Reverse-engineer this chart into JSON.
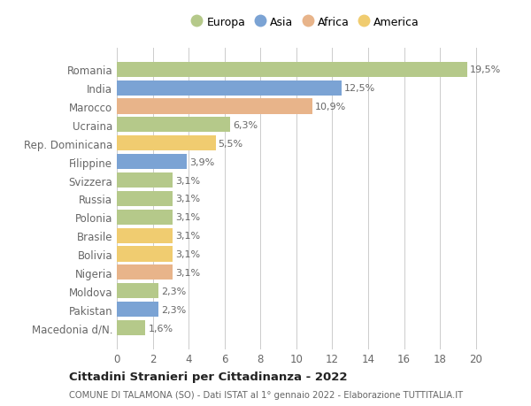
{
  "countries": [
    "Romania",
    "India",
    "Marocco",
    "Ucraina",
    "Rep. Dominicana",
    "Filippine",
    "Svizzera",
    "Russia",
    "Polonia",
    "Brasile",
    "Bolivia",
    "Nigeria",
    "Moldova",
    "Pakistan",
    "Macedonia d/N."
  ],
  "values": [
    19.5,
    12.5,
    10.9,
    6.3,
    5.5,
    3.9,
    3.1,
    3.1,
    3.1,
    3.1,
    3.1,
    3.1,
    2.3,
    2.3,
    1.6
  ],
  "labels": [
    "19,5%",
    "12,5%",
    "10,9%",
    "6,3%",
    "5,5%",
    "3,9%",
    "3,1%",
    "3,1%",
    "3,1%",
    "3,1%",
    "3,1%",
    "3,1%",
    "2,3%",
    "2,3%",
    "1,6%"
  ],
  "continents": [
    "Europa",
    "Asia",
    "Africa",
    "Europa",
    "America",
    "Asia",
    "Europa",
    "Europa",
    "Europa",
    "America",
    "America",
    "Africa",
    "Europa",
    "Asia",
    "Europa"
  ],
  "colors": {
    "Europa": "#b5c98a",
    "Asia": "#7ba3d4",
    "Africa": "#e8b48a",
    "America": "#f0cc70"
  },
  "legend_order": [
    "Europa",
    "Asia",
    "Africa",
    "America"
  ],
  "legend_colors": [
    "#b5c98a",
    "#7ba3d4",
    "#e8b48a",
    "#f0cc70"
  ],
  "xlim": [
    0,
    21
  ],
  "xticks": [
    0,
    2,
    4,
    6,
    8,
    10,
    12,
    14,
    16,
    18,
    20
  ],
  "title_main": "Cittadini Stranieri per Cittadinanza - 2022",
  "title_sub": "COMUNE DI TALAMONA (SO) - Dati ISTAT al 1° gennaio 2022 - Elaborazione TUTTITALIA.IT",
  "bg_color": "#ffffff",
  "grid_color": "#cccccc",
  "bar_height": 0.82,
  "label_fontsize": 8.0,
  "ytick_fontsize": 8.5,
  "xtick_fontsize": 8.5,
  "text_color": "#666666"
}
